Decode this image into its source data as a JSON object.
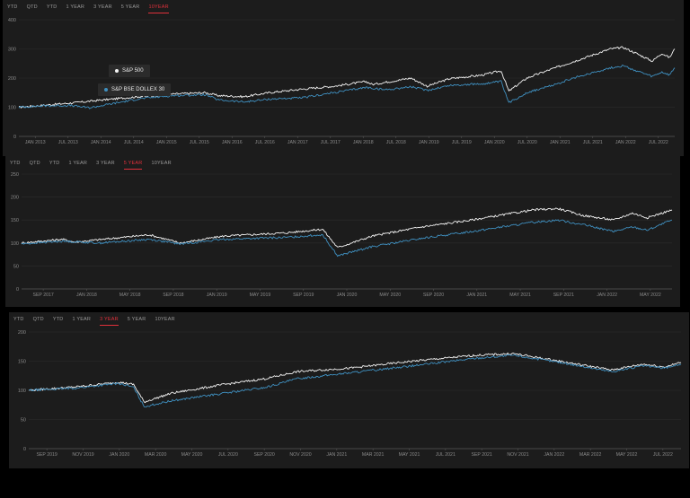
{
  "colors": {
    "sp500": "#f5f5f5",
    "bse": "#3f8fbf",
    "active_tab": "#e0303b",
    "grid": "#2c2c2c",
    "axis_text": "#8a8a8a"
  },
  "tooltip": {
    "sp500": "S&P 500",
    "bse": "S&P BSE DOLLEX 30"
  },
  "chart_data": [
    {
      "type": "line",
      "tabs": [
        "YTD",
        "QTD",
        "YTD",
        "1 YEAR",
        "3 YEAR",
        "5 YEAR",
        "10YEAR"
      ],
      "active_tab": 6,
      "ylim": [
        0,
        400
      ],
      "yticks": [
        0,
        100,
        200,
        300,
        400
      ],
      "xlabels": [
        "JAN 2013",
        "JUL 2013",
        "JAN 2014",
        "JUL 2014",
        "JAN 2015",
        "JUL 2015",
        "JAN 2016",
        "JUL 2016",
        "JAN 2017",
        "JUL 2017",
        "JAN 2018",
        "JUL 2018",
        "JAN 2019",
        "JUL 2019",
        "JAN 2020",
        "JUL 2020",
        "JAN 2021",
        "JUL 2021",
        "JAN 2022",
        "JUL 2022"
      ],
      "x_start": 2012.6,
      "x_end": 2022.8,
      "series": [
        {
          "name": "S&P 500",
          "points": [
            [
              2012.6,
              100
            ],
            [
              2013.0,
              107
            ],
            [
              2013.5,
              116
            ],
            [
              2014.0,
              127
            ],
            [
              2014.5,
              137
            ],
            [
              2015.0,
              145
            ],
            [
              2015.5,
              150
            ],
            [
              2015.7,
              140
            ],
            [
              2016.1,
              136
            ],
            [
              2016.5,
              150
            ],
            [
              2017.0,
              162
            ],
            [
              2017.5,
              172
            ],
            [
              2018.0,
              188
            ],
            [
              2018.1,
              178
            ],
            [
              2018.7,
              200
            ],
            [
              2018.95,
              172
            ],
            [
              2019.3,
              198
            ],
            [
              2019.8,
              210
            ],
            [
              2020.1,
              225
            ],
            [
              2020.22,
              155
            ],
            [
              2020.5,
              200
            ],
            [
              2020.9,
              232
            ],
            [
              2021.3,
              262
            ],
            [
              2021.8,
              300
            ],
            [
              2022.0,
              305
            ],
            [
              2022.2,
              285
            ],
            [
              2022.45,
              258
            ],
            [
              2022.6,
              285
            ],
            [
              2022.72,
              270
            ],
            [
              2022.8,
              300
            ]
          ]
        },
        {
          "name": "S&P BSE DOLLEX 30",
          "points": [
            [
              2012.6,
              100
            ],
            [
              2013.0,
              105
            ],
            [
              2013.4,
              106
            ],
            [
              2013.7,
              98
            ],
            [
              2014.0,
              110
            ],
            [
              2014.5,
              130
            ],
            [
              2015.0,
              140
            ],
            [
              2015.5,
              143
            ],
            [
              2015.7,
              125
            ],
            [
              2016.1,
              118
            ],
            [
              2016.5,
              128
            ],
            [
              2017.0,
              132
            ],
            [
              2017.5,
              150
            ],
            [
              2018.0,
              168
            ],
            [
              2018.3,
              160
            ],
            [
              2018.7,
              170
            ],
            [
              2018.95,
              158
            ],
            [
              2019.3,
              175
            ],
            [
              2019.8,
              180
            ],
            [
              2020.1,
              188
            ],
            [
              2020.22,
              115
            ],
            [
              2020.5,
              150
            ],
            [
              2020.9,
              175
            ],
            [
              2021.3,
              205
            ],
            [
              2021.8,
              235
            ],
            [
              2022.0,
              242
            ],
            [
              2022.2,
              225
            ],
            [
              2022.45,
              205
            ],
            [
              2022.6,
              220
            ],
            [
              2022.72,
              210
            ],
            [
              2022.8,
              235
            ]
          ]
        }
      ]
    },
    {
      "type": "line",
      "tabs": [
        "YTD",
        "QTD",
        "YTD",
        "1 YEAR",
        "3 YEAR",
        "5 YEAR",
        "10YEAR"
      ],
      "active_tab": 5,
      "ylim": [
        0,
        250
      ],
      "yticks": [
        0,
        50,
        100,
        150,
        200,
        250
      ],
      "xlabels": [
        "SEP 2017",
        "JAN 2018",
        "MAY 2018",
        "SEP 2018",
        "JAN 2019",
        "MAY 2019",
        "SEP 2019",
        "JAN 2020",
        "MAY 2020",
        "SEP 2020",
        "JAN 2021",
        "MAY 2021",
        "SEP 2021",
        "JAN 2022",
        "MAY 2022"
      ],
      "x_start": 2017.67,
      "x_end": 2022.92,
      "series": [
        {
          "name": "S&P 500",
          "points": [
            [
              2017.67,
              100
            ],
            [
              2018.0,
              108
            ],
            [
              2018.1,
              102
            ],
            [
              2018.7,
              118
            ],
            [
              2018.95,
              100
            ],
            [
              2019.3,
              115
            ],
            [
              2019.8,
              122
            ],
            [
              2020.1,
              130
            ],
            [
              2020.22,
              90
            ],
            [
              2020.5,
              115
            ],
            [
              2020.9,
              135
            ],
            [
              2021.3,
              150
            ],
            [
              2021.8,
              172
            ],
            [
              2022.0,
              175
            ],
            [
              2022.2,
              160
            ],
            [
              2022.45,
              150
            ],
            [
              2022.6,
              165
            ],
            [
              2022.72,
              155
            ],
            [
              2022.92,
              172
            ]
          ]
        },
        {
          "name": "S&P BSE DOLLEX 30",
          "points": [
            [
              2017.67,
              98
            ],
            [
              2018.0,
              104
            ],
            [
              2018.3,
              100
            ],
            [
              2018.7,
              108
            ],
            [
              2018.95,
              98
            ],
            [
              2019.3,
              108
            ],
            [
              2019.8,
              112
            ],
            [
              2020.1,
              118
            ],
            [
              2020.22,
              72
            ],
            [
              2020.5,
              92
            ],
            [
              2020.9,
              110
            ],
            [
              2021.3,
              125
            ],
            [
              2021.8,
              145
            ],
            [
              2022.0,
              150
            ],
            [
              2022.2,
              140
            ],
            [
              2022.45,
              125
            ],
            [
              2022.6,
              135
            ],
            [
              2022.72,
              128
            ],
            [
              2022.92,
              150
            ]
          ]
        }
      ]
    },
    {
      "type": "line",
      "tabs": [
        "YTD",
        "QTD",
        "YTD",
        "1 YEAR",
        "3 YEAR",
        "5 YEAR",
        "10YEAR"
      ],
      "active_tab": 4,
      "ylim": [
        0,
        200
      ],
      "yticks": [
        0,
        50,
        100,
        150,
        200
      ],
      "xlabels": [
        "SEP 2019",
        "NOV 2019",
        "JAN 2020",
        "MAR 2020",
        "MAY 2020",
        "JUL 2020",
        "SEP 2020",
        "NOV 2020",
        "JAN 2021",
        "MAR 2021",
        "MAY 2021",
        "JUL 2021",
        "SEP 2021",
        "NOV 2021",
        "JAN 2022",
        "MAR 2022",
        "MAY 2022",
        "JUL 2022"
      ],
      "x_start": 2019.67,
      "x_end": 2022.78,
      "series": [
        {
          "name": "S&P 500",
          "points": [
            [
              2019.67,
              100
            ],
            [
              2019.9,
              106
            ],
            [
              2020.1,
              114
            ],
            [
              2020.17,
              110
            ],
            [
              2020.22,
              80
            ],
            [
              2020.35,
              95
            ],
            [
              2020.6,
              110
            ],
            [
              2020.8,
              120
            ],
            [
              2020.95,
              132
            ],
            [
              2021.2,
              138
            ],
            [
              2021.5,
              150
            ],
            [
              2021.8,
              160
            ],
            [
              2021.98,
              163
            ],
            [
              2022.2,
              150
            ],
            [
              2022.45,
              135
            ],
            [
              2022.6,
              145
            ],
            [
              2022.7,
              140
            ],
            [
              2022.78,
              148
            ]
          ]
        },
        {
          "name": "S&P BSE DOLLEX 30",
          "points": [
            [
              2019.67,
              100
            ],
            [
              2019.9,
              104
            ],
            [
              2020.1,
              112
            ],
            [
              2020.17,
              105
            ],
            [
              2020.22,
              72
            ],
            [
              2020.35,
              82
            ],
            [
              2020.6,
              95
            ],
            [
              2020.8,
              105
            ],
            [
              2020.95,
              120
            ],
            [
              2021.2,
              130
            ],
            [
              2021.5,
              142
            ],
            [
              2021.8,
              155
            ],
            [
              2021.98,
              160
            ],
            [
              2022.2,
              148
            ],
            [
              2022.45,
              132
            ],
            [
              2022.6,
              142
            ],
            [
              2022.7,
              138
            ],
            [
              2022.78,
              145
            ]
          ]
        }
      ]
    }
  ]
}
